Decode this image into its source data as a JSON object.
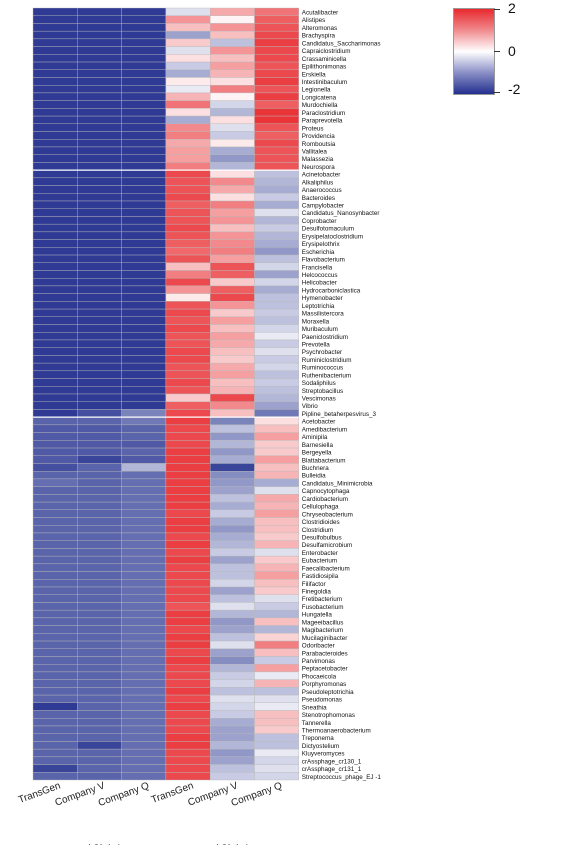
{
  "chart_data": {
    "type": "heatmap",
    "columns": [
      "TransGen",
      "Company V",
      "Company Q",
      "TransGen",
      "Company V",
      "Company Q"
    ],
    "groups": [
      {
        "label": "不去除宿主",
        "columns": [
          0,
          1,
          2
        ]
      },
      {
        "label": "去除宿主",
        "columns": [
          3,
          4,
          5
        ]
      }
    ],
    "color_scale": {
      "min": -2,
      "mid": 0,
      "max": 2,
      "low_color": "#23308e",
      "mid_color": "#ffffff",
      "high_color": "#e8292e"
    },
    "legend_ticks": [
      "2",
      "0",
      "-2"
    ],
    "rows": [
      {
        "name": "Acutalibacter",
        "values": [
          -1.9,
          -1.9,
          -1.9,
          -0.3,
          0.8,
          1.3
        ]
      },
      {
        "name": "Alistipes",
        "values": [
          -1.9,
          -1.9,
          -1.9,
          1.0,
          0.1,
          1.5
        ]
      },
      {
        "name": "Alteromonas",
        "values": [
          -1.9,
          -1.9,
          -1.9,
          0.6,
          1.0,
          1.6
        ]
      },
      {
        "name": "Brachyspira",
        "values": [
          -1.9,
          -1.9,
          -1.9,
          -0.9,
          0.6,
          1.7
        ]
      },
      {
        "name": "Candidatus_Saccharimonas",
        "values": [
          -1.9,
          -1.9,
          -1.9,
          0.5,
          -0.6,
          1.8
        ]
      },
      {
        "name": "Capraiclostridium",
        "values": [
          -1.9,
          -1.9,
          -1.9,
          -0.3,
          1.0,
          1.7
        ]
      },
      {
        "name": "Crassaminicella",
        "values": [
          -1.9,
          -1.9,
          -1.9,
          0.3,
          0.6,
          1.7
        ]
      },
      {
        "name": "Epilithonimonas",
        "values": [
          -1.9,
          -1.9,
          -1.9,
          -0.5,
          0.9,
          1.6
        ]
      },
      {
        "name": "Erskiella",
        "values": [
          -1.9,
          -1.9,
          -1.9,
          -0.8,
          0.7,
          1.7
        ]
      },
      {
        "name": "Intestinibaculum",
        "values": [
          -1.9,
          -1.9,
          -1.9,
          0.2,
          0.3,
          1.8
        ]
      },
      {
        "name": "Legionella",
        "values": [
          -1.9,
          -1.9,
          -1.9,
          -0.2,
          1.2,
          1.6
        ]
      },
      {
        "name": "Longicatena",
        "values": [
          -1.9,
          -1.9,
          -1.9,
          0.7,
          0.1,
          1.8
        ]
      },
      {
        "name": "Murdochiella",
        "values": [
          -1.9,
          -1.9,
          -1.9,
          1.3,
          -0.4,
          1.5
        ]
      },
      {
        "name": "Paraclostridium",
        "values": [
          -1.9,
          -1.9,
          -1.9,
          0.3,
          -0.7,
          1.9
        ]
      },
      {
        "name": "Paraprevotella",
        "values": [
          -1.9,
          -1.9,
          -1.9,
          -0.8,
          0.3,
          1.9
        ]
      },
      {
        "name": "Proteus",
        "values": [
          -1.9,
          -1.9,
          -1.9,
          1.1,
          -0.3,
          1.6
        ]
      },
      {
        "name": "Providencia",
        "values": [
          -1.9,
          -1.9,
          -1.9,
          1.2,
          -0.5,
          1.5
        ]
      },
      {
        "name": "Romboutsia",
        "values": [
          -1.9,
          -1.9,
          -1.9,
          0.8,
          0.2,
          1.7
        ]
      },
      {
        "name": "Vallitalea",
        "values": [
          -1.9,
          -1.9,
          -1.9,
          0.9,
          -0.8,
          1.6
        ]
      },
      {
        "name": "Malassezia",
        "values": [
          -1.9,
          -1.9,
          -1.9,
          0.9,
          -1.0,
          1.6
        ]
      },
      {
        "name": "Neurospora",
        "values": [
          -1.9,
          -1.9,
          -1.9,
          1.2,
          -0.7,
          1.6
        ]
      },
      {
        "name": "Acinetobacter",
        "values": [
          -1.9,
          -1.9,
          -1.9,
          1.7,
          0.3,
          -0.6
        ]
      },
      {
        "name": "Alkaliphilus",
        "values": [
          -1.9,
          -1.9,
          -1.9,
          1.6,
          1.1,
          -0.7
        ]
      },
      {
        "name": "Anaerococcus",
        "values": [
          -1.9,
          -1.9,
          -1.9,
          1.6,
          0.8,
          -0.8
        ]
      },
      {
        "name": "Bacteroides",
        "values": [
          -1.9,
          -1.9,
          -1.9,
          1.7,
          0.3,
          -0.5
        ]
      },
      {
        "name": "Campylobacter",
        "values": [
          -1.9,
          -1.9,
          -1.9,
          1.5,
          1.2,
          -0.8
        ]
      },
      {
        "name": "Candidatus_Nanosynbacter",
        "values": [
          -1.9,
          -1.9,
          -1.9,
          1.6,
          0.9,
          -0.3
        ]
      },
      {
        "name": "Coprobacter",
        "values": [
          -1.9,
          -1.9,
          -1.9,
          1.6,
          1.0,
          -0.7
        ]
      },
      {
        "name": "Desulfotomaculum",
        "values": [
          -1.9,
          -1.9,
          -1.9,
          1.7,
          0.6,
          -0.5
        ]
      },
      {
        "name": "Erysipelatoclostridium",
        "values": [
          -1.9,
          -1.9,
          -1.9,
          1.6,
          1.0,
          -0.7
        ]
      },
      {
        "name": "Erysipelothrix",
        "values": [
          -1.9,
          -1.9,
          -1.9,
          1.5,
          1.1,
          -0.8
        ]
      },
      {
        "name": "Escherichia",
        "values": [
          -1.9,
          -1.9,
          -1.9,
          1.4,
          1.2,
          -1.0
        ]
      },
      {
        "name": "Flavobacterium",
        "values": [
          -1.9,
          -1.9,
          -1.9,
          1.6,
          0.9,
          -0.6
        ]
      },
      {
        "name": "Francisella",
        "values": [
          -1.9,
          -1.9,
          -1.9,
          0.6,
          1.6,
          -0.4
        ]
      },
      {
        "name": "Helcococcus",
        "values": [
          -1.9,
          -1.9,
          -1.9,
          1.2,
          1.5,
          -0.9
        ]
      },
      {
        "name": "Helicobacter",
        "values": [
          -1.9,
          -1.9,
          -1.9,
          1.7,
          0.5,
          -0.4
        ]
      },
      {
        "name": "Hydrocarboniclastica",
        "values": [
          -1.9,
          -1.9,
          -1.9,
          1.0,
          1.5,
          -0.8
        ]
      },
      {
        "name": "Hymenobacter",
        "values": [
          -1.9,
          -1.9,
          -1.9,
          0.2,
          1.7,
          -0.6
        ]
      },
      {
        "name": "Leptotrichia",
        "values": [
          -1.9,
          -1.9,
          -1.9,
          1.6,
          1.0,
          -0.6
        ]
      },
      {
        "name": "Massilistercora",
        "values": [
          -1.9,
          -1.9,
          -1.9,
          1.7,
          0.5,
          -0.5
        ]
      },
      {
        "name": "Moraxella",
        "values": [
          -1.9,
          -1.9,
          -1.9,
          1.6,
          0.9,
          -0.6
        ]
      },
      {
        "name": "Muribaculum",
        "values": [
          -1.9,
          -1.9,
          -1.9,
          1.7,
          0.6,
          -0.4
        ]
      },
      {
        "name": "Paeniclostridium",
        "values": [
          -1.9,
          -1.9,
          -1.9,
          1.6,
          0.9,
          -0.2
        ]
      },
      {
        "name": "Prevotella",
        "values": [
          -1.9,
          -1.9,
          -1.9,
          1.6,
          0.8,
          -0.5
        ]
      },
      {
        "name": "Psychrobacter",
        "values": [
          -1.9,
          -1.9,
          -1.9,
          1.7,
          0.6,
          -0.3
        ]
      },
      {
        "name": "Ruminiclostridium",
        "values": [
          -1.9,
          -1.9,
          -1.9,
          1.7,
          0.5,
          -0.5
        ]
      },
      {
        "name": "Ruminococcus",
        "values": [
          -1.9,
          -1.9,
          -1.9,
          1.6,
          0.8,
          -0.4
        ]
      },
      {
        "name": "Ruthenibacterium",
        "values": [
          -1.9,
          -1.9,
          -1.9,
          1.6,
          0.9,
          -0.6
        ]
      },
      {
        "name": "Sodaliphilus",
        "values": [
          -1.9,
          -1.9,
          -1.9,
          1.7,
          0.6,
          -0.5
        ]
      },
      {
        "name": "Streptobacillus",
        "values": [
          -1.9,
          -1.9,
          -1.9,
          1.6,
          0.7,
          -0.6
        ]
      },
      {
        "name": "Vescimonas",
        "values": [
          -1.9,
          -1.9,
          -1.9,
          0.5,
          1.7,
          -0.7
        ]
      },
      {
        "name": "Vibrio",
        "values": [
          -1.9,
          -1.9,
          -1.9,
          1.5,
          1.1,
          -0.9
        ]
      },
      {
        "name": "Pipline_betaherpesvirus_3",
        "values": [
          -1.9,
          -1.7,
          -1.2,
          1.7,
          0.6,
          -1.3
        ]
      },
      {
        "name": "Acetobacter",
        "values": [
          -1.5,
          -1.5,
          -1.3,
          1.8,
          -1.2,
          0.3
        ]
      },
      {
        "name": "Amedibacterium",
        "values": [
          -1.6,
          -1.6,
          -1.5,
          1.7,
          -0.6,
          0.6
        ]
      },
      {
        "name": "Aminipila",
        "values": [
          -1.6,
          -1.6,
          -1.5,
          1.7,
          -1.0,
          0.9
        ]
      },
      {
        "name": "Barnesiella",
        "values": [
          -1.6,
          -1.6,
          -1.6,
          1.7,
          -0.7,
          0.5
        ]
      },
      {
        "name": "Bergeyella",
        "values": [
          -1.6,
          -1.6,
          -1.5,
          1.8,
          -1.0,
          0.5
        ]
      },
      {
        "name": "Blattabacterium",
        "values": [
          -1.6,
          -1.8,
          -1.6,
          1.8,
          -0.8,
          0.9
        ]
      },
      {
        "name": "Buchnera",
        "values": [
          -1.7,
          -1.5,
          -0.7,
          1.8,
          -1.8,
          0.6
        ]
      },
      {
        "name": "Bulleidia",
        "values": [
          -1.5,
          -1.5,
          -1.4,
          1.8,
          -1.1,
          0.7
        ]
      },
      {
        "name": "Candidatus_Minimicrobia",
        "values": [
          -1.4,
          -1.5,
          -1.4,
          1.8,
          -1.0,
          -0.8
        ]
      },
      {
        "name": "Capnocytophaga",
        "values": [
          -1.5,
          -1.5,
          -1.4,
          1.8,
          -0.9,
          -0.3
        ]
      },
      {
        "name": "Cardiobacterium",
        "values": [
          -1.5,
          -1.5,
          -1.4,
          1.8,
          -0.6,
          0.8
        ]
      },
      {
        "name": "Cellulophaga",
        "values": [
          -1.5,
          -1.5,
          -1.4,
          1.8,
          -0.8,
          0.7
        ]
      },
      {
        "name": "Chryseobacterium",
        "values": [
          -1.5,
          -1.5,
          -1.4,
          1.7,
          -0.5,
          0.9
        ]
      },
      {
        "name": "Clostridioides",
        "values": [
          -1.5,
          -1.5,
          -1.4,
          1.8,
          -0.8,
          0.6
        ]
      },
      {
        "name": "Clostridium",
        "values": [
          -1.5,
          -1.5,
          -1.4,
          1.8,
          -1.0,
          0.6
        ]
      },
      {
        "name": "Desulfobulbus",
        "values": [
          -1.5,
          -1.5,
          -1.4,
          1.7,
          -0.8,
          0.5
        ]
      },
      {
        "name": "Desulfamicrobium",
        "values": [
          -1.5,
          -1.5,
          -1.4,
          1.8,
          -0.7,
          0.7
        ]
      },
      {
        "name": "Enterobacter",
        "values": [
          -1.5,
          -1.5,
          -1.4,
          1.7,
          -0.5,
          -0.3
        ]
      },
      {
        "name": "Eubacterium",
        "values": [
          -1.5,
          -1.5,
          -1.4,
          1.8,
          -0.9,
          0.5
        ]
      },
      {
        "name": "Faecalibacterium",
        "values": [
          -1.5,
          -1.5,
          -1.4,
          1.7,
          -0.6,
          0.7
        ]
      },
      {
        "name": "Fastidiosipila",
        "values": [
          -1.5,
          -1.5,
          -1.4,
          1.7,
          -0.6,
          0.9
        ]
      },
      {
        "name": "Filifactor",
        "values": [
          -1.5,
          -1.5,
          -1.4,
          1.7,
          -0.4,
          0.6
        ]
      },
      {
        "name": "Finegoldia",
        "values": [
          -1.5,
          -1.5,
          -1.4,
          1.7,
          -0.9,
          0.5
        ]
      },
      {
        "name": "Fretibacterium",
        "values": [
          -1.5,
          -1.5,
          -1.4,
          1.7,
          -0.6,
          -0.3
        ]
      },
      {
        "name": "Fusobacterium",
        "values": [
          -1.5,
          -1.5,
          -1.4,
          1.6,
          -0.3,
          -0.5
        ]
      },
      {
        "name": "Hungatella",
        "values": [
          -1.5,
          -1.5,
          -1.4,
          1.8,
          -0.7,
          -0.7
        ]
      },
      {
        "name": "Mageeibacillus",
        "values": [
          -1.5,
          -1.5,
          -1.4,
          1.8,
          -1.0,
          0.6
        ]
      },
      {
        "name": "Magibacterium",
        "values": [
          -1.5,
          -1.5,
          -1.4,
          1.7,
          -0.9,
          -0.7
        ]
      },
      {
        "name": "Mucilaginibacter",
        "values": [
          -1.5,
          -1.5,
          -1.4,
          1.8,
          -0.6,
          0.4
        ]
      },
      {
        "name": "Odoribacter",
        "values": [
          -1.5,
          -1.5,
          -1.4,
          1.8,
          -0.3,
          1.2
        ]
      },
      {
        "name": "Parabacteroides",
        "values": [
          -1.5,
          -1.5,
          -1.4,
          1.7,
          -0.9,
          0.6
        ]
      },
      {
        "name": "Parvimonas",
        "values": [
          -1.5,
          -1.5,
          -1.4,
          1.8,
          -1.1,
          -0.5
        ]
      },
      {
        "name": "Peptacetobacter",
        "values": [
          -1.5,
          -1.5,
          -1.4,
          1.7,
          -0.7,
          0.9
        ]
      },
      {
        "name": "Phocaeicola",
        "values": [
          -1.5,
          -1.5,
          -1.4,
          1.7,
          -0.5,
          -0.2
        ]
      },
      {
        "name": "Porphyromonas",
        "values": [
          -1.5,
          -1.5,
          -1.4,
          1.7,
          -0.4,
          0.7
        ]
      },
      {
        "name": "Pseudoleptotrichia",
        "values": [
          -1.5,
          -1.5,
          -1.4,
          1.8,
          -0.6,
          -0.6
        ]
      },
      {
        "name": "Pseudomonas",
        "values": [
          -1.5,
          -1.5,
          -1.4,
          1.7,
          -0.3,
          -0.3
        ]
      },
      {
        "name": "Sneathia",
        "values": [
          -1.9,
          -1.5,
          -1.4,
          1.8,
          -0.4,
          -0.2
        ]
      },
      {
        "name": "Stenotrophomonas",
        "values": [
          -1.5,
          -1.5,
          -1.4,
          1.7,
          -0.5,
          0.6
        ]
      },
      {
        "name": "Tannerella",
        "values": [
          -1.5,
          -1.5,
          -1.4,
          1.7,
          -0.8,
          0.6
        ]
      },
      {
        "name": "Thermoanaerobacterium",
        "values": [
          -1.5,
          -1.5,
          -1.4,
          1.7,
          -0.9,
          0.5
        ]
      },
      {
        "name": "Treponema",
        "values": [
          -1.5,
          -1.5,
          -1.4,
          1.8,
          -0.9,
          -0.6
        ]
      },
      {
        "name": "Dictyostelium",
        "values": [
          -1.5,
          -1.8,
          -1.4,
          1.8,
          -0.7,
          -0.6
        ]
      },
      {
        "name": "Kluyveromyces",
        "values": [
          -1.5,
          -1.5,
          -1.4,
          1.7,
          -1.0,
          -0.2
        ]
      },
      {
        "name": "crAssphage_cr130_1",
        "values": [
          -1.5,
          -1.5,
          -1.4,
          1.7,
          -0.9,
          -0.4
        ]
      },
      {
        "name": "crAssphage_cr131_1",
        "values": [
          -1.8,
          -1.5,
          -1.4,
          1.7,
          -0.6,
          -0.3
        ]
      },
      {
        "name": "Streptococcus_phage_EJ -1",
        "values": [
          -1.5,
          -1.5,
          -1.4,
          1.7,
          -0.5,
          -0.4
        ]
      }
    ]
  }
}
